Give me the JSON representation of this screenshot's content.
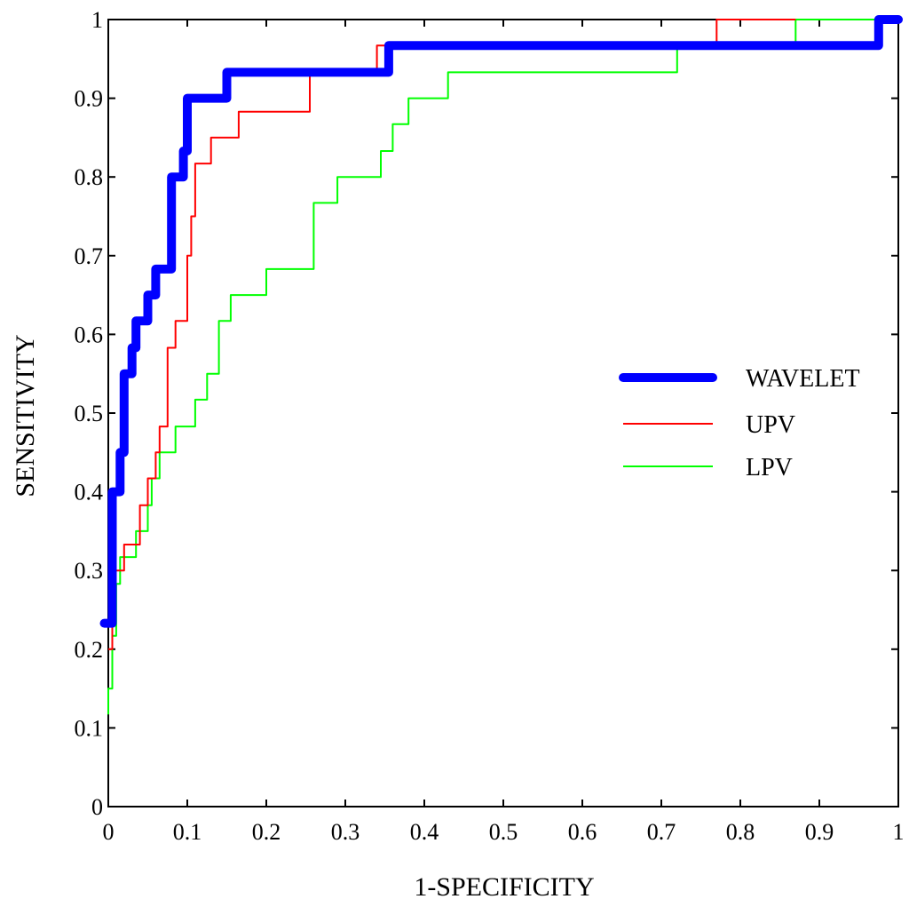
{
  "chart_data": {
    "type": "line",
    "xlabel": "1-SPECIFICITY",
    "ylabel": "SENSITIVITY",
    "xlim": [
      0,
      1
    ],
    "ylim": [
      0,
      1
    ],
    "xticks": [
      "0",
      "0.1",
      "0.2",
      "0.3",
      "0.4",
      "0.5",
      "0.6",
      "0.7",
      "0.8",
      "0.9",
      "1"
    ],
    "yticks": [
      "0",
      "0.1",
      "0.2",
      "0.3",
      "0.4",
      "0.5",
      "0.6",
      "0.7",
      "0.8",
      "0.9",
      "1"
    ],
    "legend_position": "right",
    "grid": false,
    "series": [
      {
        "name": "WAVELET",
        "color": "#0000ff",
        "line": "thick",
        "points": [
          [
            -0.005,
            0.233
          ],
          [
            0.005,
            0.233
          ],
          [
            0.005,
            0.4
          ],
          [
            0.015,
            0.4
          ],
          [
            0.015,
            0.45
          ],
          [
            0.02,
            0.45
          ],
          [
            0.02,
            0.55
          ],
          [
            0.03,
            0.55
          ],
          [
            0.03,
            0.583
          ],
          [
            0.035,
            0.583
          ],
          [
            0.035,
            0.617
          ],
          [
            0.05,
            0.617
          ],
          [
            0.05,
            0.65
          ],
          [
            0.06,
            0.65
          ],
          [
            0.06,
            0.683
          ],
          [
            0.08,
            0.683
          ],
          [
            0.08,
            0.8
          ],
          [
            0.095,
            0.8
          ],
          [
            0.095,
            0.833
          ],
          [
            0.1,
            0.833
          ],
          [
            0.1,
            0.9
          ],
          [
            0.15,
            0.9
          ],
          [
            0.15,
            0.933
          ],
          [
            0.355,
            0.933
          ],
          [
            0.355,
            0.967
          ],
          [
            0.975,
            0.967
          ],
          [
            0.975,
            1.0
          ],
          [
            1.0,
            1.0
          ]
        ]
      },
      {
        "name": "UPV",
        "color": "#ff0000",
        "line": "thin",
        "points": [
          [
            0.0,
            0.2
          ],
          [
            0.005,
            0.2
          ],
          [
            0.005,
            0.3
          ],
          [
            0.02,
            0.3
          ],
          [
            0.02,
            0.333
          ],
          [
            0.04,
            0.333
          ],
          [
            0.04,
            0.383
          ],
          [
            0.05,
            0.383
          ],
          [
            0.05,
            0.417
          ],
          [
            0.06,
            0.417
          ],
          [
            0.06,
            0.45
          ],
          [
            0.065,
            0.45
          ],
          [
            0.065,
            0.483
          ],
          [
            0.075,
            0.483
          ],
          [
            0.075,
            0.583
          ],
          [
            0.085,
            0.583
          ],
          [
            0.085,
            0.617
          ],
          [
            0.1,
            0.617
          ],
          [
            0.1,
            0.7
          ],
          [
            0.105,
            0.7
          ],
          [
            0.105,
            0.75
          ],
          [
            0.11,
            0.75
          ],
          [
            0.11,
            0.817
          ],
          [
            0.13,
            0.817
          ],
          [
            0.13,
            0.85
          ],
          [
            0.165,
            0.85
          ],
          [
            0.165,
            0.883
          ],
          [
            0.255,
            0.883
          ],
          [
            0.255,
            0.933
          ],
          [
            0.34,
            0.933
          ],
          [
            0.34,
            0.967
          ],
          [
            0.77,
            0.967
          ],
          [
            0.77,
            1.0
          ],
          [
            0.87,
            1.0
          ]
        ]
      },
      {
        "name": "LPV",
        "color": "#00ff00",
        "line": "thin",
        "points": [
          [
            0.0,
            0.117
          ],
          [
            0.0,
            0.15
          ],
          [
            0.005,
            0.15
          ],
          [
            0.005,
            0.217
          ],
          [
            0.01,
            0.217
          ],
          [
            0.01,
            0.283
          ],
          [
            0.015,
            0.283
          ],
          [
            0.015,
            0.317
          ],
          [
            0.035,
            0.317
          ],
          [
            0.035,
            0.35
          ],
          [
            0.05,
            0.35
          ],
          [
            0.05,
            0.383
          ],
          [
            0.055,
            0.383
          ],
          [
            0.055,
            0.417
          ],
          [
            0.065,
            0.417
          ],
          [
            0.065,
            0.45
          ],
          [
            0.085,
            0.45
          ],
          [
            0.085,
            0.483
          ],
          [
            0.11,
            0.483
          ],
          [
            0.11,
            0.517
          ],
          [
            0.125,
            0.517
          ],
          [
            0.125,
            0.55
          ],
          [
            0.14,
            0.55
          ],
          [
            0.14,
            0.617
          ],
          [
            0.155,
            0.617
          ],
          [
            0.155,
            0.65
          ],
          [
            0.2,
            0.65
          ],
          [
            0.2,
            0.683
          ],
          [
            0.26,
            0.683
          ],
          [
            0.26,
            0.767
          ],
          [
            0.29,
            0.767
          ],
          [
            0.29,
            0.8
          ],
          [
            0.345,
            0.8
          ],
          [
            0.345,
            0.833
          ],
          [
            0.36,
            0.833
          ],
          [
            0.36,
            0.867
          ],
          [
            0.38,
            0.867
          ],
          [
            0.38,
            0.9
          ],
          [
            0.43,
            0.9
          ],
          [
            0.43,
            0.933
          ],
          [
            0.72,
            0.933
          ],
          [
            0.72,
            0.967
          ],
          [
            0.87,
            0.967
          ],
          [
            0.87,
            1.0
          ],
          [
            1.0,
            1.0
          ]
        ]
      }
    ]
  }
}
